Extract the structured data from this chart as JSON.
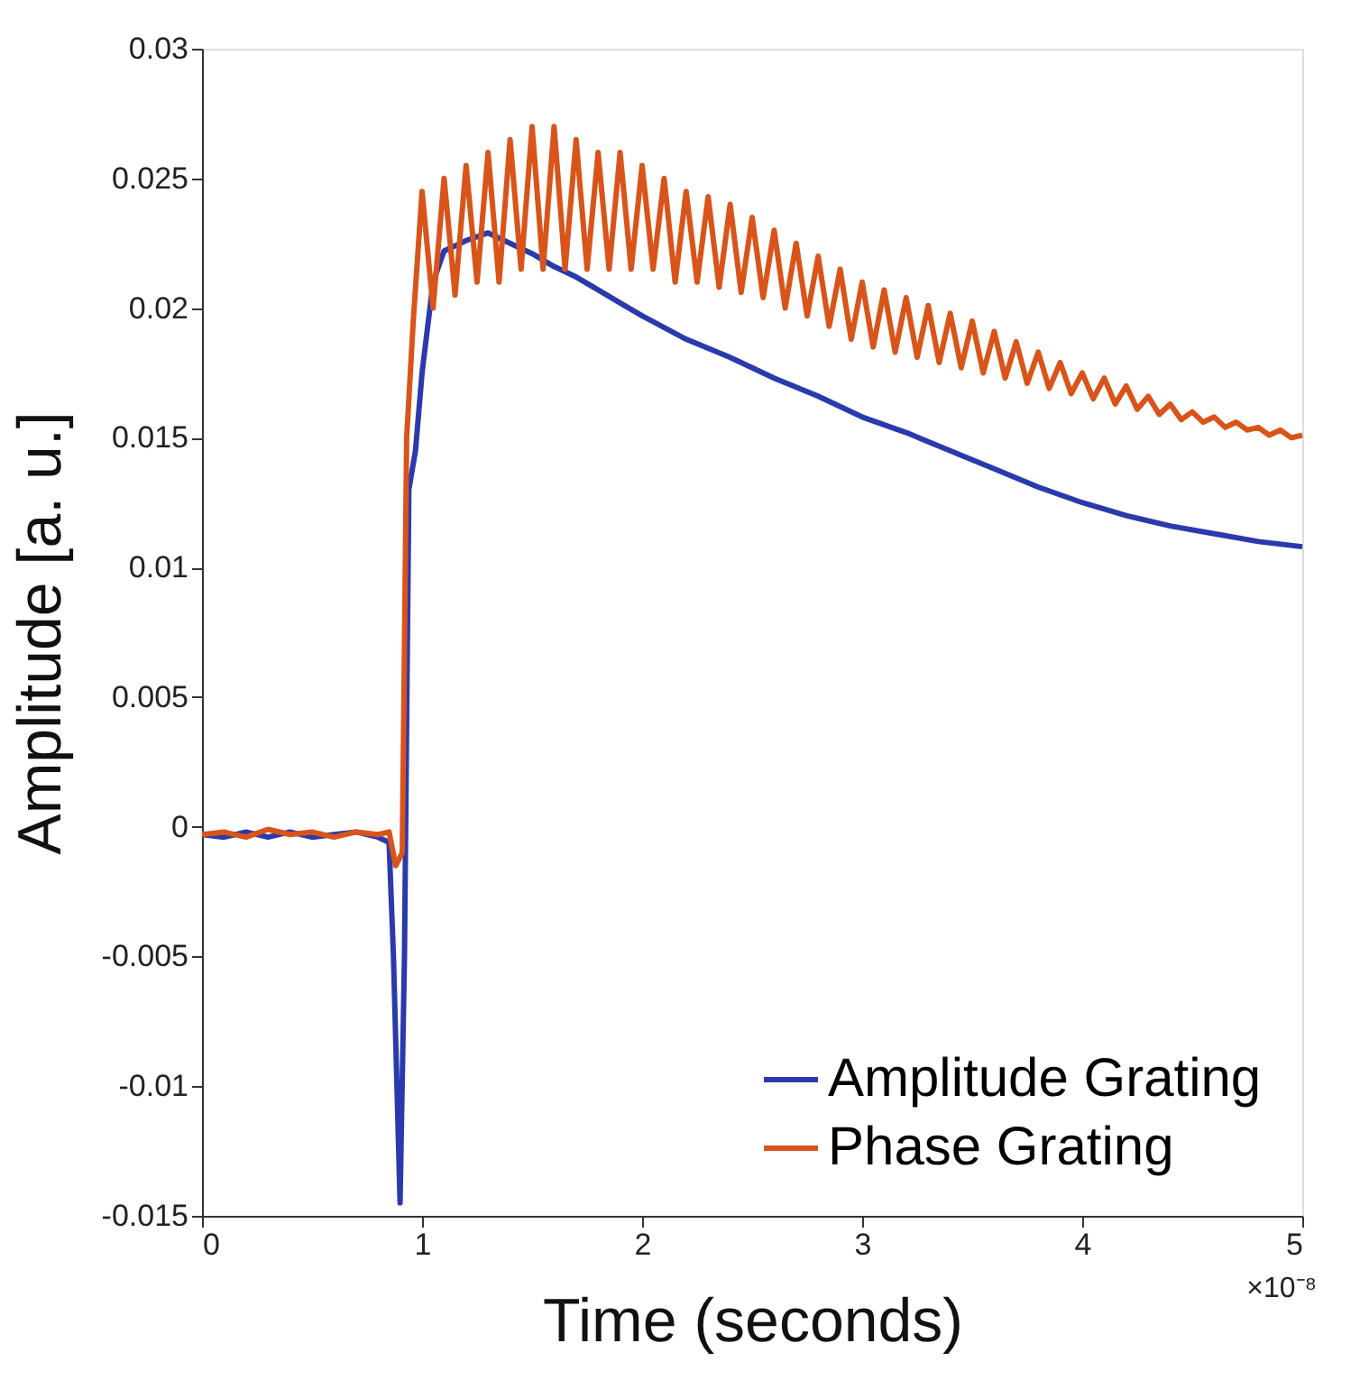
{
  "chart_data": {
    "type": "line",
    "xlabel": "Time (seconds)",
    "ylabel": "Amplitude [a. u.]",
    "annotations": [
      "×10⁻⁸"
    ],
    "xlim": [
      0,
      5
    ],
    "xticks": [
      0,
      1,
      2,
      3,
      4,
      5
    ],
    "ylim": [
      -0.015,
      0.03
    ],
    "yticks": [
      -0.015,
      -0.01,
      -0.005,
      0,
      0.005,
      0.01,
      0.015,
      0.02,
      0.025,
      0.03
    ],
    "grid": false,
    "legend": "bottom right",
    "line_style": "solid",
    "marker": "none",
    "series": [
      {
        "name": "Amplitude Grating",
        "color": "#2a3aad",
        "x": [
          0,
          0.1,
          0.2,
          0.3,
          0.4,
          0.5,
          0.6,
          0.7,
          0.8,
          0.85,
          0.87,
          0.9,
          0.92,
          0.94,
          0.97,
          1.0,
          1.05,
          1.1,
          1.2,
          1.3,
          1.4,
          1.5,
          1.6,
          1.7,
          1.8,
          1.9,
          2.0,
          2.2,
          2.4,
          2.6,
          2.8,
          3.0,
          3.2,
          3.4,
          3.6,
          3.8,
          4.0,
          4.2,
          4.4,
          4.6,
          4.8,
          5.0
        ],
        "values": [
          -0.0003,
          -0.0004,
          -0.0002,
          -0.0004,
          -0.0002,
          -0.0004,
          -0.0003,
          -0.0002,
          -0.0004,
          -0.0006,
          -0.005,
          -0.0145,
          -0.005,
          0.013,
          0.0145,
          0.0175,
          0.021,
          0.0222,
          0.0226,
          0.0229,
          0.0225,
          0.0221,
          0.0216,
          0.0212,
          0.0207,
          0.0202,
          0.0197,
          0.0188,
          0.0181,
          0.0173,
          0.0166,
          0.0158,
          0.0152,
          0.0145,
          0.0138,
          0.0131,
          0.0125,
          0.012,
          0.0116,
          0.0113,
          0.011,
          0.0108
        ]
      },
      {
        "name": "Phase Grating",
        "color": "#d9541a",
        "x": [
          0,
          0.1,
          0.2,
          0.3,
          0.4,
          0.5,
          0.6,
          0.7,
          0.8,
          0.85,
          0.88,
          0.91,
          0.93,
          0.96,
          1.0,
          1.05,
          1.1,
          1.15,
          1.2,
          1.25,
          1.3,
          1.35,
          1.4,
          1.45,
          1.5,
          1.55,
          1.6,
          1.65,
          1.7,
          1.75,
          1.8,
          1.85,
          1.9,
          1.95,
          2.0,
          2.05,
          2.1,
          2.15,
          2.2,
          2.25,
          2.3,
          2.35,
          2.4,
          2.45,
          2.5,
          2.55,
          2.6,
          2.65,
          2.7,
          2.75,
          2.8,
          2.85,
          2.9,
          2.95,
          3.0,
          3.05,
          3.1,
          3.15,
          3.2,
          3.25,
          3.3,
          3.35,
          3.4,
          3.45,
          3.5,
          3.55,
          3.6,
          3.65,
          3.7,
          3.75,
          3.8,
          3.85,
          3.9,
          3.95,
          4.0,
          4.05,
          4.1,
          4.15,
          4.2,
          4.25,
          4.3,
          4.35,
          4.4,
          4.45,
          4.5,
          4.55,
          4.6,
          4.65,
          4.7,
          4.75,
          4.8,
          4.85,
          4.9,
          4.95,
          5.0
        ],
        "values": [
          -0.0003,
          -0.0002,
          -0.0004,
          -0.0001,
          -0.0003,
          -0.0002,
          -0.0004,
          -0.0002,
          -0.0003,
          -0.0002,
          -0.0015,
          -0.001,
          0.015,
          0.0195,
          0.0245,
          0.02,
          0.025,
          0.0205,
          0.0255,
          0.021,
          0.026,
          0.021,
          0.0265,
          0.0215,
          0.027,
          0.0215,
          0.027,
          0.0215,
          0.0265,
          0.0215,
          0.026,
          0.0215,
          0.026,
          0.0215,
          0.0255,
          0.0215,
          0.025,
          0.021,
          0.0245,
          0.021,
          0.0243,
          0.0208,
          0.024,
          0.0206,
          0.0235,
          0.0204,
          0.023,
          0.02,
          0.0225,
          0.0197,
          0.022,
          0.0193,
          0.0215,
          0.0188,
          0.021,
          0.0185,
          0.0207,
          0.0183,
          0.0204,
          0.0181,
          0.0201,
          0.0179,
          0.0198,
          0.0177,
          0.0195,
          0.0175,
          0.0191,
          0.0173,
          0.0187,
          0.0171,
          0.0183,
          0.0169,
          0.0179,
          0.0167,
          0.0175,
          0.0165,
          0.0173,
          0.0163,
          0.017,
          0.0161,
          0.0166,
          0.0159,
          0.0163,
          0.0157,
          0.016,
          0.0156,
          0.0158,
          0.0154,
          0.0156,
          0.0153,
          0.0154,
          0.0151,
          0.0153,
          0.015,
          0.0151
        ]
      }
    ]
  }
}
